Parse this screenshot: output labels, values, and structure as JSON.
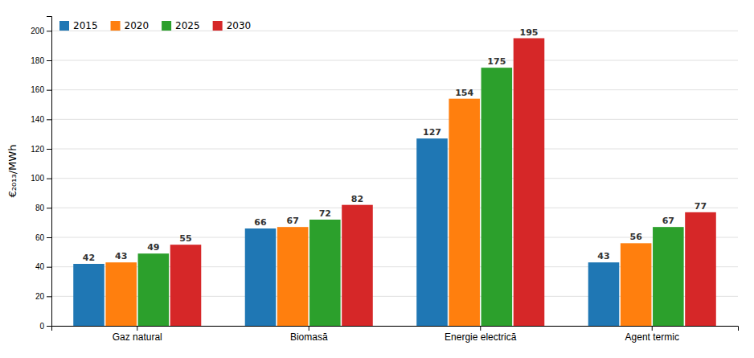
{
  "chart_data": {
    "type": "bar",
    "categories": [
      "Gaz natural",
      "Biomasă",
      "Energie electrică",
      "Agent termic"
    ],
    "series": [
      {
        "name": "2015",
        "values": [
          42,
          66,
          127,
          43
        ]
      },
      {
        "name": "2020",
        "values": [
          43,
          67,
          154,
          56
        ]
      },
      {
        "name": "2025",
        "values": [
          49,
          72,
          175,
          67
        ]
      },
      {
        "name": "2030",
        "values": [
          55,
          82,
          195,
          77
        ]
      }
    ],
    "ylabel": "€₂₀₁₃/MWh",
    "ylim": [
      0,
      210
    ],
    "yticks": [
      0,
      20,
      40,
      60,
      80,
      100,
      120,
      140,
      160,
      180,
      200
    ],
    "grid": true,
    "legend": "upper-left",
    "data_labels": true
  }
}
